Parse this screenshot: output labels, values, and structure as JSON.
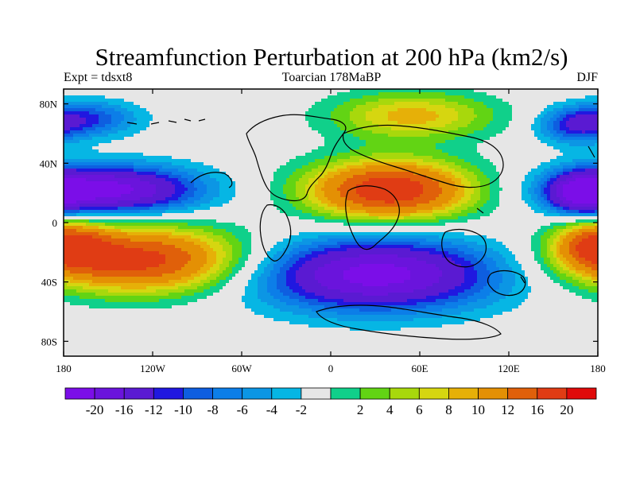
{
  "title": "Streamfunction Perturbation at 200 hPa (km2/s)",
  "subtitle": {
    "left": "Expt = tdsxt8",
    "center": "Toarcian 178MaBP",
    "right": "DJF"
  },
  "map": {
    "lon_range": [
      -180,
      180
    ],
    "lat_range": [
      -90,
      90
    ],
    "x_ticks": [
      {
        "lon": -180,
        "label": "180"
      },
      {
        "lon": -120,
        "label": "120W"
      },
      {
        "lon": -60,
        "label": "60W"
      },
      {
        "lon": 0,
        "label": "0"
      },
      {
        "lon": 60,
        "label": "60E"
      },
      {
        "lon": 120,
        "label": "120E"
      },
      {
        "lon": 180,
        "label": "180"
      }
    ],
    "y_ticks": [
      {
        "lat": 80,
        "label": "80N"
      },
      {
        "lat": 40,
        "label": "40N"
      },
      {
        "lat": 0,
        "label": "0"
      },
      {
        "lat": -40,
        "label": "40S"
      },
      {
        "lat": -80,
        "label": "80S"
      }
    ],
    "anomalies": [
      {
        "name": "tropical-high-africa",
        "lon": 40,
        "lat": 22,
        "rlon": 55,
        "rlat": 20,
        "amp": 24
      },
      {
        "name": "south-pacific-high",
        "lon": -128,
        "lat": -25,
        "rlon": 70,
        "rlat": 22,
        "amp": 22
      },
      {
        "name": "west-pacific-high",
        "lon": 180,
        "lat": -15,
        "rlon": 28,
        "rlat": 16,
        "amp": 17
      },
      {
        "name": "arctic-high",
        "lon": 55,
        "lat": 72,
        "rlon": 55,
        "rlat": 16,
        "amp": 11
      },
      {
        "name": "north-pacific-low",
        "lon": -150,
        "lat": 22,
        "rlon": 60,
        "rlat": 16,
        "amp": -22
      },
      {
        "name": "east-pacific-low",
        "lon": 170,
        "lat": 20,
        "rlon": 22,
        "rlat": 14,
        "amp": -16
      },
      {
        "name": "south-atlantic-low",
        "lon": 30,
        "lat": -35,
        "rlon": 80,
        "rlat": 24,
        "amp": -22
      },
      {
        "name": "arctic-low-west",
        "lon": -165,
        "lat": 70,
        "rlon": 35,
        "rlat": 12,
        "amp": -10
      },
      {
        "name": "arctic-low-east",
        "lon": 165,
        "lat": 65,
        "rlon": 25,
        "rlat": 12,
        "amp": -10
      }
    ]
  },
  "colorbar": {
    "colors": [
      "#7b0ee8",
      "#6a14dc",
      "#5a1ad2",
      "#2018e0",
      "#0e5ee0",
      "#0c7ee8",
      "#0c96e4",
      "#06b6e4",
      "#e6e6e6",
      "#10d08a",
      "#62d414",
      "#a8d80c",
      "#d6d610",
      "#e6b008",
      "#e49004",
      "#e0600a",
      "#e03c14",
      "#e00a0a"
    ],
    "labels": [
      "-20",
      "-16",
      "-12",
      "-10",
      "-8",
      "-6",
      "-4",
      "-2",
      "2",
      "4",
      "6",
      "8",
      "10",
      "12",
      "16",
      "20"
    ],
    "levels": [
      -20,
      -16,
      -12,
      -10,
      -8,
      -6,
      -4,
      -2,
      2,
      4,
      6,
      8,
      10,
      12,
      16,
      20
    ]
  }
}
